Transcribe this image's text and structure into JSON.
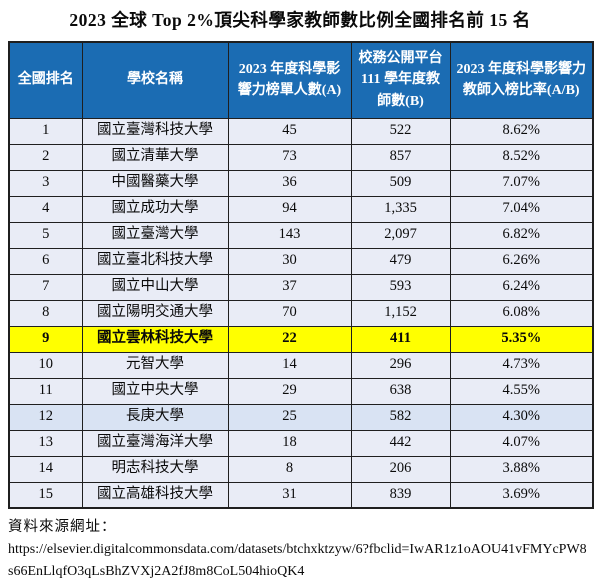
{
  "title": "2023 全球 Top 2%頂尖科學家教師數比例全國排名前 15 名",
  "table": {
    "headers": [
      "全國排名",
      "學校名稱",
      "2023 年度科學影響力榜單人數(A)",
      "校務公開平台111 學年度教師數(B)",
      "2023 年度科學影響力教師入榜比率(A/B)"
    ],
    "rows": [
      {
        "rank": "1",
        "school": "國立臺灣科技大學",
        "listed": "45",
        "faculty": "522",
        "ratio": "8.62%",
        "highlight": false,
        "tint": false
      },
      {
        "rank": "2",
        "school": "國立清華大學",
        "listed": "73",
        "faculty": "857",
        "ratio": "8.52%",
        "highlight": false,
        "tint": false
      },
      {
        "rank": "3",
        "school": "中國醫藥大學",
        "listed": "36",
        "faculty": "509",
        "ratio": "7.07%",
        "highlight": false,
        "tint": false
      },
      {
        "rank": "4",
        "school": "國立成功大學",
        "listed": "94",
        "faculty": "1,335",
        "ratio": "7.04%",
        "highlight": false,
        "tint": false
      },
      {
        "rank": "5",
        "school": "國立臺灣大學",
        "listed": "143",
        "faculty": "2,097",
        "ratio": "6.82%",
        "highlight": false,
        "tint": false
      },
      {
        "rank": "6",
        "school": "國立臺北科技大學",
        "listed": "30",
        "faculty": "479",
        "ratio": "6.26%",
        "highlight": false,
        "tint": false
      },
      {
        "rank": "7",
        "school": "國立中山大學",
        "listed": "37",
        "faculty": "593",
        "ratio": "6.24%",
        "highlight": false,
        "tint": false
      },
      {
        "rank": "8",
        "school": "國立陽明交通大學",
        "listed": "70",
        "faculty": "1,152",
        "ratio": "6.08%",
        "highlight": false,
        "tint": false
      },
      {
        "rank": "9",
        "school": "國立雲林科技大學",
        "listed": "22",
        "faculty": "411",
        "ratio": "5.35%",
        "highlight": true,
        "tint": false
      },
      {
        "rank": "10",
        "school": "元智大學",
        "listed": "14",
        "faculty": "296",
        "ratio": "4.73%",
        "highlight": false,
        "tint": false
      },
      {
        "rank": "11",
        "school": "國立中央大學",
        "listed": "29",
        "faculty": "638",
        "ratio": "4.55%",
        "highlight": false,
        "tint": false
      },
      {
        "rank": "12",
        "school": "長庚大學",
        "listed": "25",
        "faculty": "582",
        "ratio": "4.30%",
        "highlight": false,
        "tint": true
      },
      {
        "rank": "13",
        "school": "國立臺灣海洋大學",
        "listed": "18",
        "faculty": "442",
        "ratio": "4.07%",
        "highlight": false,
        "tint": false
      },
      {
        "rank": "14",
        "school": "明志科技大學",
        "listed": "8",
        "faculty": "206",
        "ratio": "3.88%",
        "highlight": false,
        "tint": false
      },
      {
        "rank": "15",
        "school": "國立高雄科技大學",
        "listed": "31",
        "faculty": "839",
        "ratio": "3.69%",
        "highlight": false,
        "tint": false
      }
    ]
  },
  "source": {
    "label": "資料來源網址：",
    "url": "https://elsevier.digitalcommonsdata.com/datasets/btchxktzyw/6?fbclid=IwAR1z1oAOU41vFMYcPW8s66EnLlqfO3qLsBhZVXj2A2fJ8m8CoL504hioQK4"
  },
  "colors": {
    "header_bg": "#1b6cb3",
    "header_fg": "#ffffff",
    "row_bg": "#e9ecf6",
    "row_tint_bg": "#d9e3f3",
    "highlight_bg": "#ffff00",
    "border": "#1f1f1f"
  }
}
